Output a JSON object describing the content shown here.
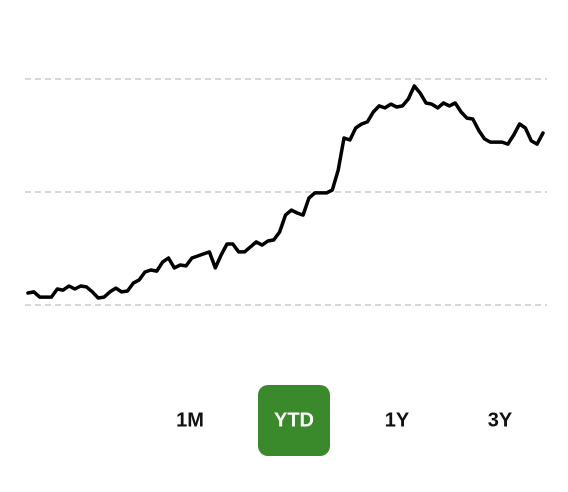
{
  "chart_data": {
    "type": "line",
    "color": "#000000",
    "grid": true,
    "ylim": [
      0,
      100
    ],
    "yticks": [
      0,
      50,
      100
    ],
    "values": [
      5.3,
      5.8,
      3.5,
      3.5,
      3.5,
      7.1,
      6.6,
      8.4,
      7.1,
      8.4,
      8,
      5.8,
      3.1,
      3.5,
      5.8,
      7.5,
      5.8,
      6.2,
      9.7,
      11.1,
      14.6,
      15.5,
      15,
      19,
      20.8,
      16.4,
      17.7,
      17.3,
      20.8,
      21.7,
      22.6,
      23.5,
      16.4,
      22.1,
      27,
      27,
      23.5,
      23.5,
      25.7,
      27.9,
      26.5,
      28.3,
      28.8,
      32.3,
      39.8,
      42,
      40.7,
      39.8,
      47.3,
      49.6,
      49.6,
      49.6,
      50.9,
      59.7,
      73.9,
      73,
      78.3,
      80.1,
      81,
      85.4,
      88.1,
      87.2,
      88.9,
      87.6,
      88.1,
      91.2,
      96.9,
      93.8,
      89.4,
      88.9,
      87.2,
      89.4,
      88.1,
      89.4,
      85.4,
      82.7,
      82.3,
      77.4,
      73.5,
      72.1,
      72.1,
      72.1,
      71.2,
      75.2,
      80.1,
      78.3,
      72.6,
      71.2,
      76.1
    ]
  },
  "range_buttons": {
    "labels": [
      "1M",
      "YTD",
      "1Y",
      "3Y"
    ],
    "selected": 1,
    "selected_color": "#3a8a2c"
  }
}
